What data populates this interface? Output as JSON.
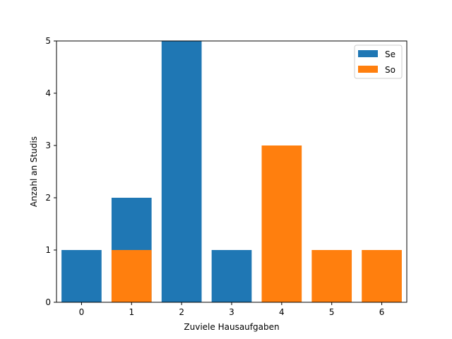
{
  "chart_data": {
    "type": "bar",
    "xlabel": "Zuviele Hausaufgaben",
    "ylabel": "Anzahl an Studis",
    "x": [
      0,
      1,
      2,
      3,
      4,
      5,
      6
    ],
    "xticks": [
      "0",
      "1",
      "2",
      "3",
      "4",
      "5",
      "6"
    ],
    "yticks": [
      "0",
      "1",
      "2",
      "3",
      "4",
      "5"
    ],
    "ylim": [
      0,
      5
    ],
    "xlim": [
      -0.5,
      6.5
    ],
    "series": [
      {
        "name": "Se",
        "color": "#1f77b4",
        "x": [
          0,
          1,
          2,
          3
        ],
        "values": [
          1,
          2,
          5,
          1
        ]
      },
      {
        "name": "So",
        "color": "#ff7f0e",
        "x": [
          1,
          4,
          5,
          6
        ],
        "values": [
          1,
          3,
          1,
          1
        ]
      }
    ],
    "legend": {
      "placement": "top-right"
    },
    "grid": false
  }
}
